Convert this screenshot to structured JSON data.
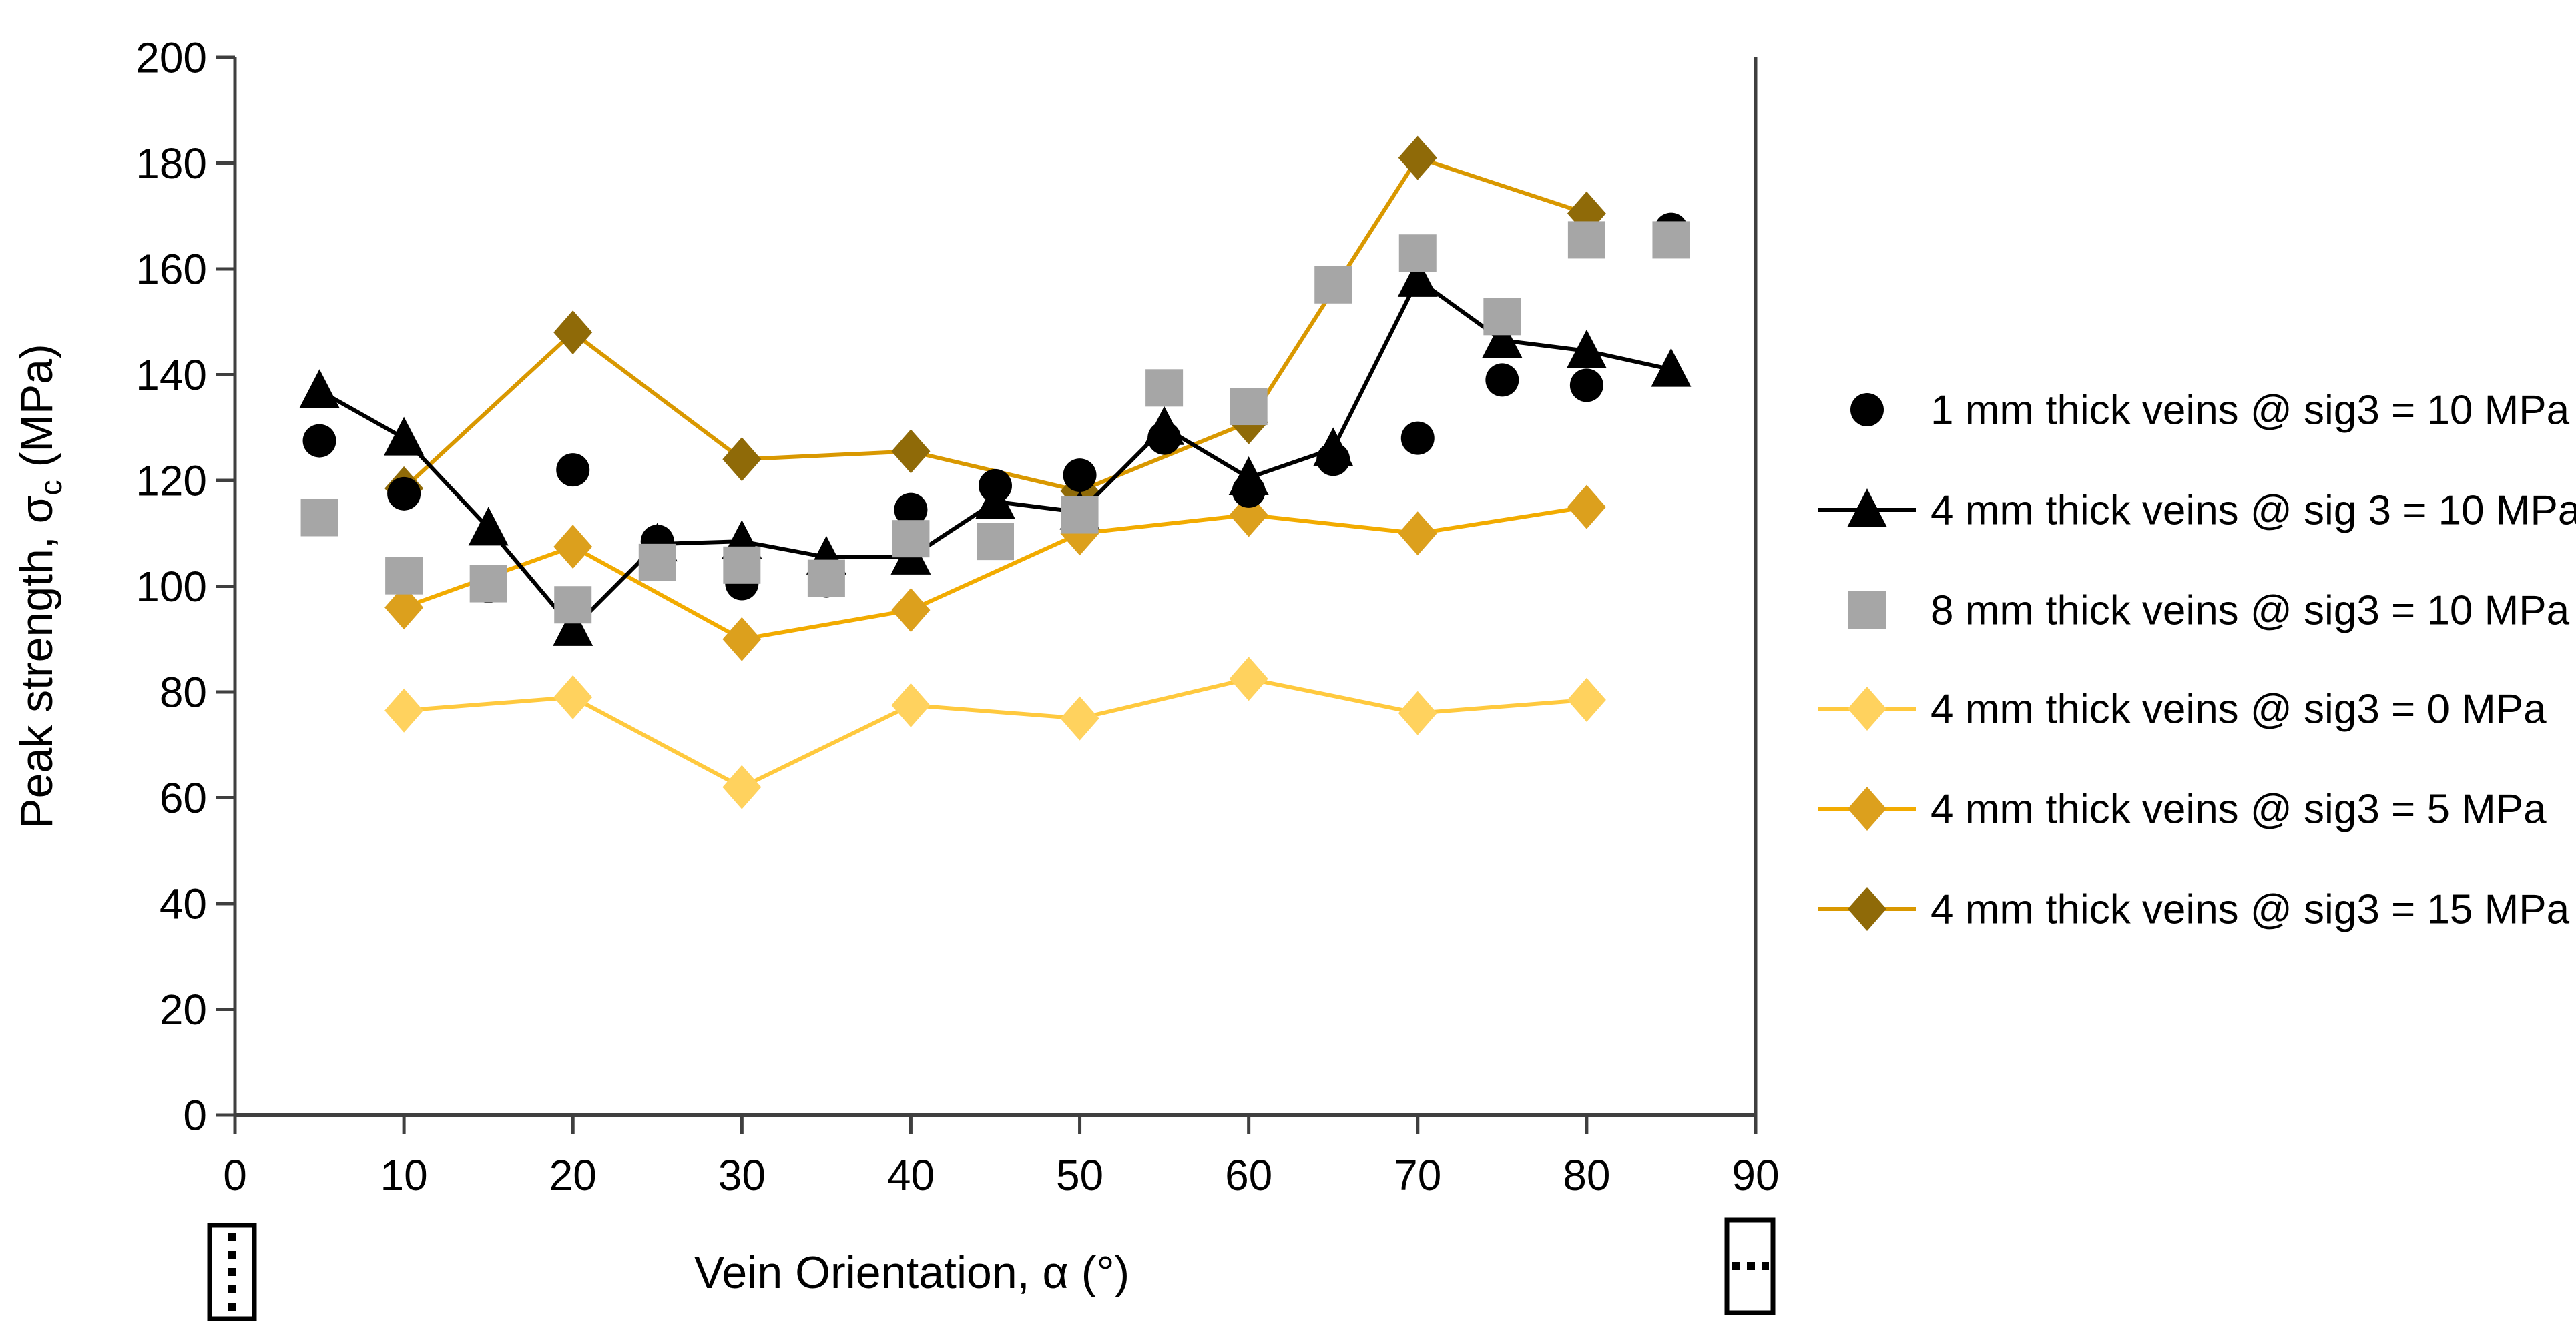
{
  "chart_data": {
    "type": "scatter",
    "x_axis": {
      "title": "Vein Orientation, α (°)",
      "min": 0,
      "max": 90,
      "ticks": [
        0,
        10,
        20,
        30,
        40,
        50,
        60,
        70,
        80,
        90
      ]
    },
    "y_axis": {
      "title": "Peak strength, σc (MPa)",
      "title_parts": {
        "prefix": "Peak strength, σ",
        "sub": "c",
        "suffix": " (MPa)"
      },
      "min": 0,
      "max": 200,
      "ticks": [
        0,
        20,
        40,
        60,
        80,
        100,
        120,
        140,
        160,
        180,
        200
      ]
    },
    "grid": "off",
    "legend_position": "right",
    "series": [
      {
        "id": "circles_1mm",
        "label": "1 mm thick veins @ sig3 = 10 MPa",
        "marker": "circle",
        "color": "#000000",
        "line": null,
        "x": [
          5,
          10,
          15,
          20,
          25,
          30,
          35,
          40,
          45,
          50,
          55,
          60,
          65,
          70,
          75,
          80,
          85
        ],
        "y": [
          127.5,
          117.5,
          100,
          122,
          108.5,
          100.5,
          101,
          114.5,
          119,
          121,
          128,
          118,
          124,
          128,
          139,
          138,
          167.5
        ]
      },
      {
        "id": "triangles_4mm",
        "label": "4 mm thick veins @ sig 3 = 10 MPa",
        "marker": "triangle",
        "color": "#000000",
        "line": "#000000",
        "x": [
          5,
          10,
          15,
          20,
          25,
          30,
          35,
          40,
          45,
          50,
          55,
          60,
          65,
          70,
          75,
          80,
          85
        ],
        "y": [
          137,
          128,
          111,
          92,
          108,
          108.5,
          105.5,
          105.5,
          116,
          114,
          130,
          120.5,
          126,
          158,
          146.5,
          144.5,
          141
        ]
      },
      {
        "id": "squares_8mm",
        "label": "8 mm thick veins @ sig3 = 10 MPa",
        "marker": "square",
        "color": "#A6A6A6",
        "line": null,
        "x": [
          5,
          10,
          15,
          20,
          25,
          30,
          35,
          40,
          45,
          50,
          55,
          60,
          65,
          70,
          75,
          80,
          85
        ],
        "y": [
          113,
          102,
          100.5,
          96.5,
          104.5,
          104,
          101.5,
          109,
          108.5,
          113.5,
          137.5,
          134,
          157,
          163,
          151,
          165.5,
          165.5
        ]
      },
      {
        "id": "yellow_sig0",
        "label": "4 mm thick veins @ sig3 = 0 MPa",
        "marker": "diamond",
        "color": "#FFD25E",
        "line": "#FFC93E",
        "x": [
          10,
          20,
          30,
          40,
          50,
          60,
          70,
          80
        ],
        "y": [
          76.5,
          79,
          62,
          77.5,
          75,
          82.5,
          76,
          78.5
        ]
      },
      {
        "id": "gold_sig5",
        "label": "4 mm thick veins @ sig3 = 5 MPa",
        "marker": "diamond",
        "color": "#DCA01D",
        "line": "#F2AB00",
        "x": [
          10,
          20,
          30,
          40,
          50,
          60,
          70,
          80
        ],
        "y": [
          96,
          107.5,
          90,
          95.5,
          110,
          113.5,
          110,
          115
        ]
      },
      {
        "id": "dark_sig15",
        "label": "4 mm thick veins @ sig3 = 15 MPa",
        "marker": "diamond",
        "color": "#8F6A08",
        "line": "#D99800",
        "x": [
          10,
          20,
          30,
          40,
          50,
          60,
          70,
          80
        ],
        "y": [
          118.5,
          148,
          124,
          125.5,
          118,
          131,
          181,
          170.5
        ]
      }
    ],
    "draw_order": [
      "yellow_sig0",
      "gold_sig5",
      "dark_sig15",
      "triangles_4mm",
      "circles_1mm",
      "squares_8mm"
    ],
    "orientation_icons": {
      "left": {
        "at_tick": 0,
        "vein_direction": "vertical"
      },
      "right": {
        "at_tick": 90,
        "vein_direction": "horizontal"
      }
    }
  }
}
